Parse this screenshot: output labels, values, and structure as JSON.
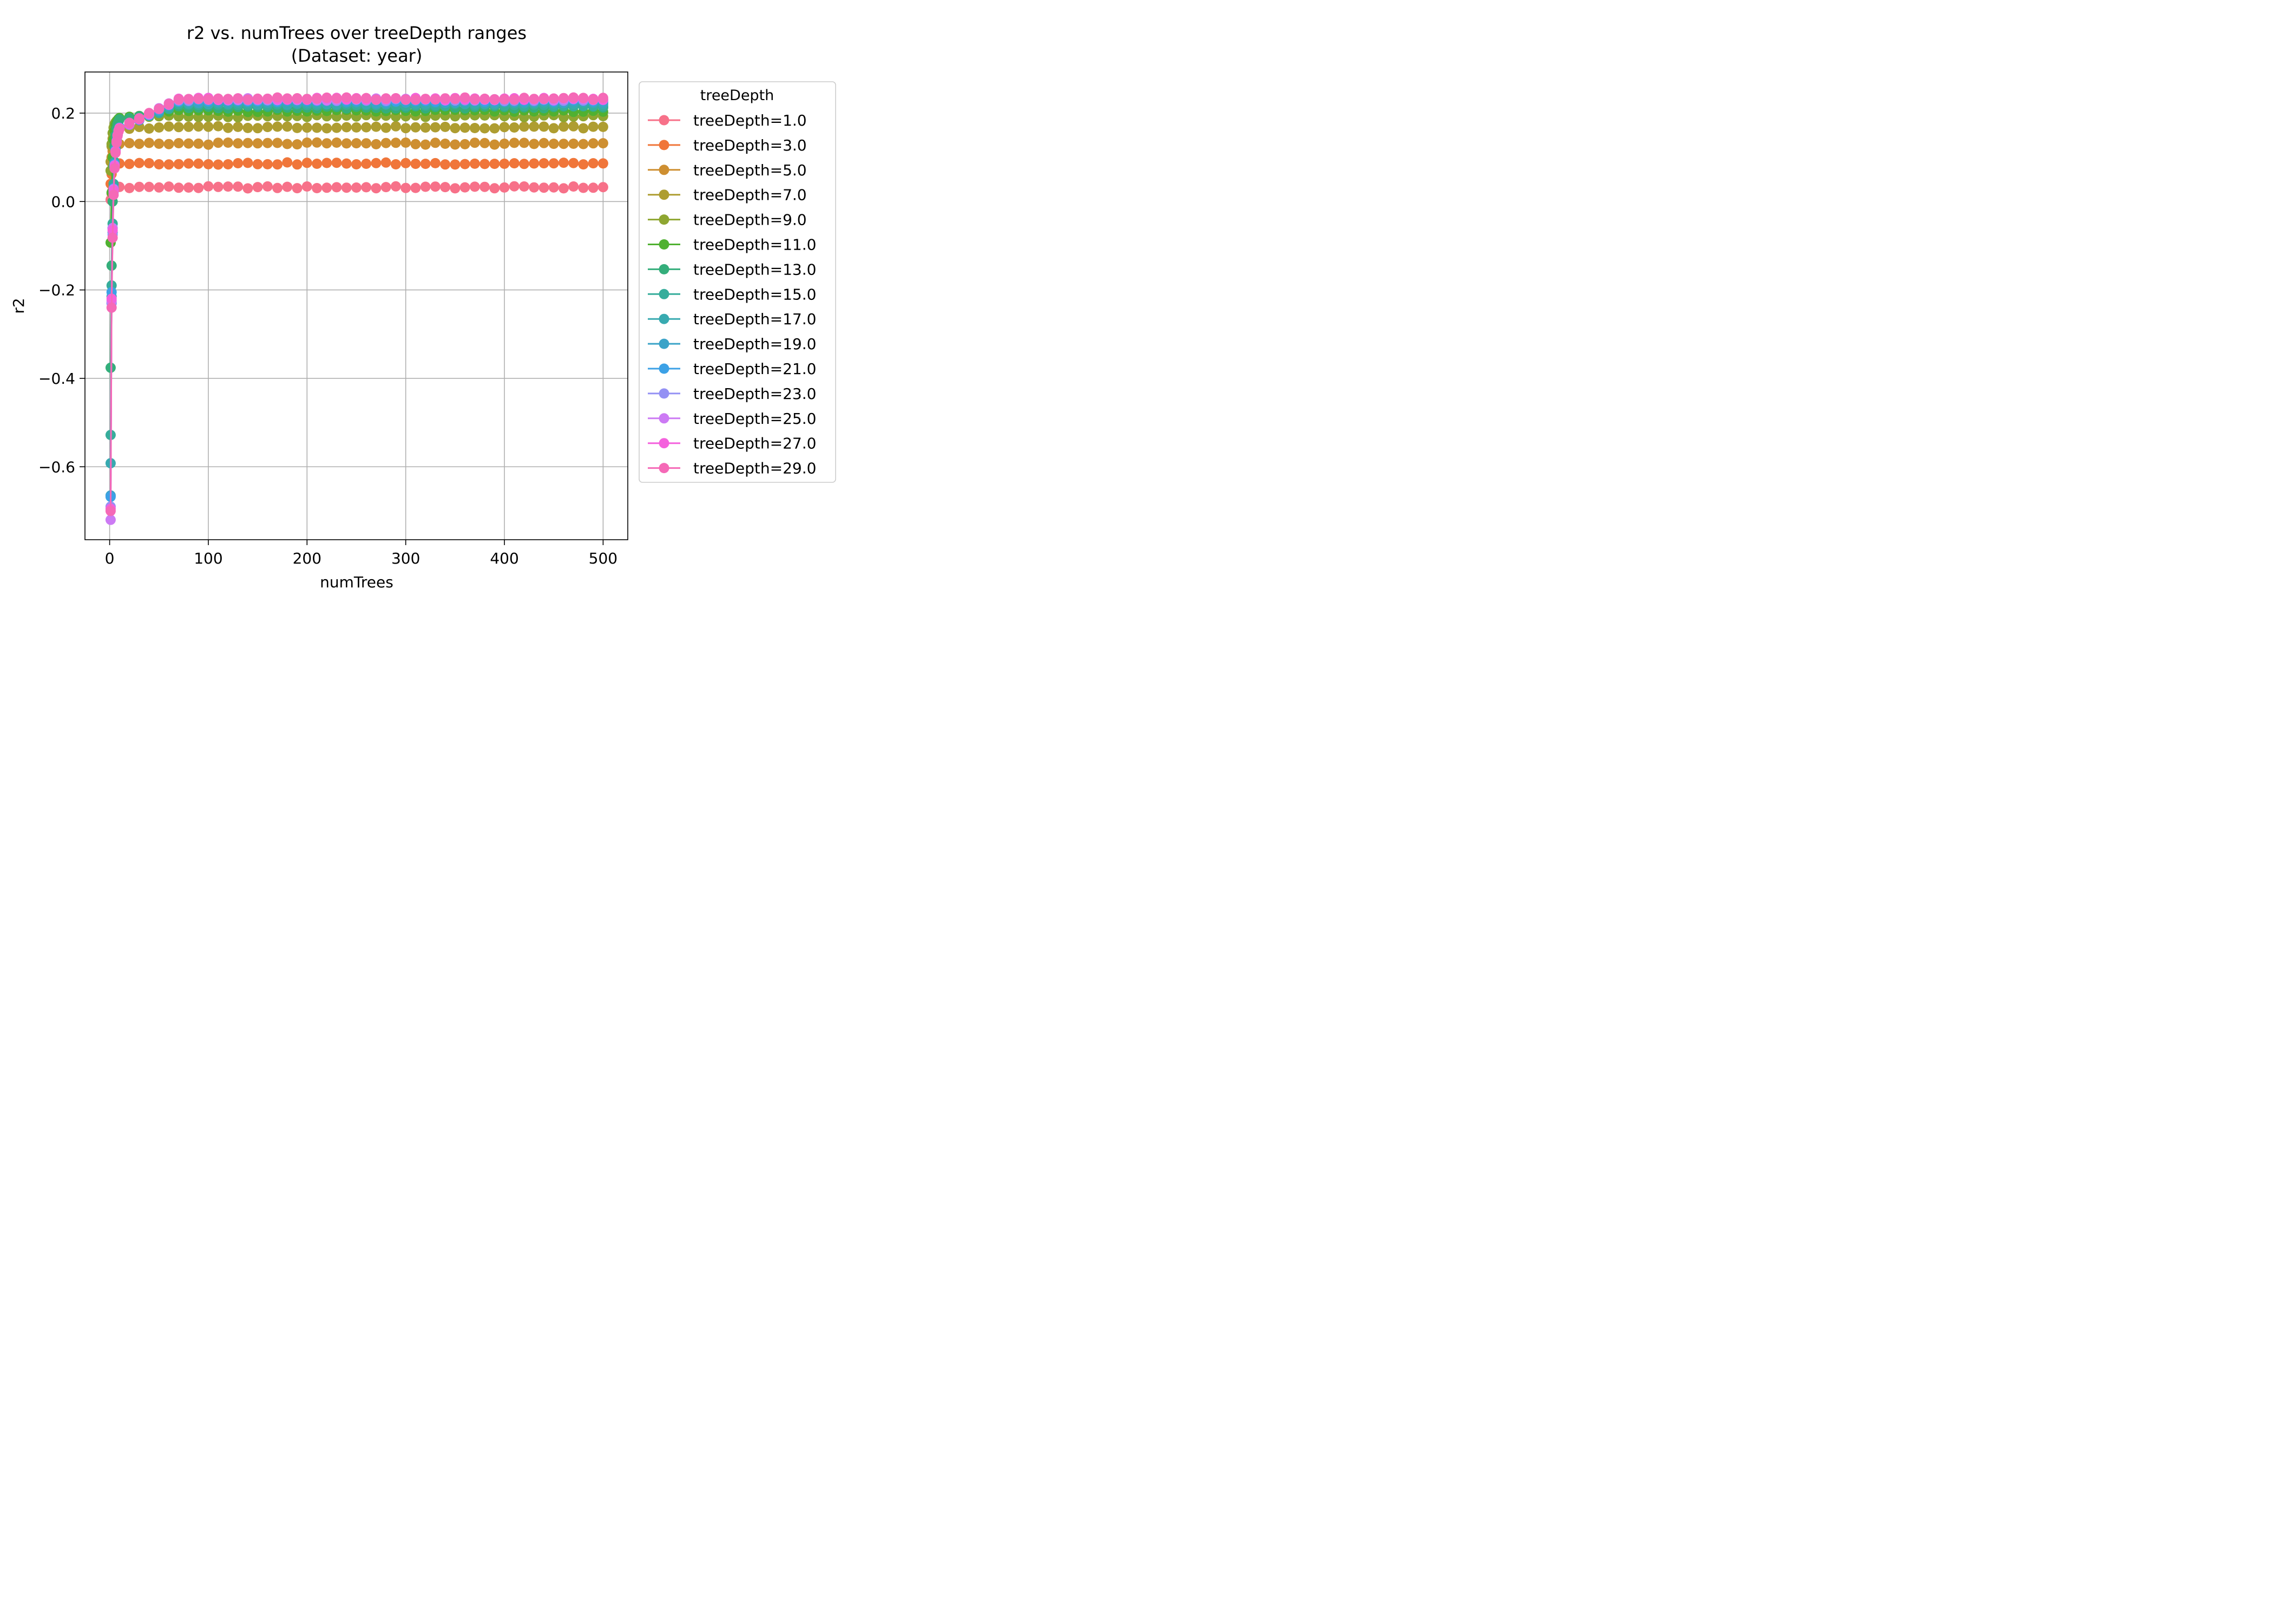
{
  "chart_data": {
    "type": "line",
    "title": "r2 vs. numTrees over treeDepth ranges",
    "subtitle": "(Dataset: year)",
    "xlabel": "numTrees",
    "ylabel": "r2",
    "xlim": [
      -25,
      525
    ],
    "ylim": [
      -0.765,
      0.293
    ],
    "xticks": [
      0,
      100,
      200,
      300,
      400,
      500
    ],
    "xtick_labels": [
      "0",
      "100",
      "200",
      "300",
      "400",
      "500"
    ],
    "yticks": [
      -0.6,
      -0.4,
      -0.2,
      0.0,
      0.2
    ],
    "ytick_labels": [
      "−0.6",
      "−0.4",
      "−0.2",
      "0.0",
      "0.2"
    ],
    "grid": true,
    "legend": {
      "title": "treeDepth",
      "placement": "outside-right"
    },
    "x": [
      1,
      2,
      3,
      4,
      5,
      6,
      7,
      8,
      9,
      10,
      20,
      30,
      40,
      50,
      60,
      70,
      80,
      90,
      100,
      110,
      120,
      130,
      140,
      150,
      160,
      170,
      180,
      190,
      200,
      210,
      220,
      230,
      240,
      250,
      260,
      270,
      280,
      290,
      300,
      310,
      320,
      330,
      340,
      350,
      360,
      370,
      380,
      390,
      400,
      410,
      420,
      430,
      440,
      450,
      460,
      470,
      480,
      490,
      500
    ],
    "series": [
      {
        "name": "treeDepth=1.0",
        "color": "#f77189",
        "depth": 1,
        "start": [
          0.004,
          0.018,
          0.026,
          0.03,
          0.032,
          0.032,
          0.033,
          0.033,
          0.033,
          0.033
        ],
        "plateau": 0.032
      },
      {
        "name": "treeDepth=3.0",
        "color": "#f0763a",
        "depth": 3,
        "start": [
          0.04,
          0.062,
          0.073,
          0.079,
          0.082,
          0.084,
          0.085,
          0.086,
          0.086,
          0.086
        ],
        "plateau": 0.086
      },
      {
        "name": "treeDepth=5.0",
        "color": "#ce8f31",
        "depth": 5,
        "start": [
          0.07,
          0.1,
          0.114,
          0.121,
          0.125,
          0.127,
          0.128,
          0.129,
          0.129,
          0.13
        ],
        "plateau": 0.131
      },
      {
        "name": "treeDepth=7.0",
        "color": "#ae9d31",
        "depth": 7,
        "start": [
          0.09,
          0.125,
          0.142,
          0.152,
          0.157,
          0.161,
          0.163,
          0.164,
          0.165,
          0.166
        ],
        "plateau": 0.168
      },
      {
        "name": "treeDepth=9.0",
        "color": "#8ea631",
        "depth": 9,
        "start": [
          0.07,
          0.13,
          0.155,
          0.167,
          0.175,
          0.179,
          0.182,
          0.184,
          0.186,
          0.187
        ],
        "plateau": 0.193
      },
      {
        "name": "treeDepth=11.0",
        "color": "#50b131",
        "depth": 11,
        "start": [
          -0.093,
          0.02,
          0.1,
          0.14,
          0.16,
          0.172,
          0.179,
          0.184,
          0.187,
          0.189
        ],
        "plateau": 0.205
      },
      {
        "name": "treeDepth=13.0",
        "color": "#34ae7b",
        "depth": 13,
        "start": [
          -0.376,
          -0.145,
          0.0,
          0.08,
          0.125,
          0.15,
          0.165,
          0.175,
          0.181,
          0.186
        ],
        "plateau": 0.213
      },
      {
        "name": "treeDepth=15.0",
        "color": "#36ad9b",
        "depth": 15,
        "start": [
          -0.528,
          -0.19,
          -0.05,
          0.04,
          0.09,
          0.12,
          0.14,
          0.153,
          0.162,
          0.168
        ],
        "plateau": 0.218
      },
      {
        "name": "treeDepth=17.0",
        "color": "#38aab0",
        "depth": 17,
        "start": [
          -0.592,
          -0.215,
          -0.06,
          0.03,
          0.085,
          0.115,
          0.137,
          0.151,
          0.161,
          0.167
        ],
        "plateau": 0.222
      },
      {
        "name": "treeDepth=19.0",
        "color": "#3ba3c8",
        "depth": 19,
        "start": [
          -0.665,
          -0.23,
          -0.07,
          0.025,
          0.08,
          0.113,
          0.135,
          0.15,
          0.16,
          0.166
        ],
        "plateau": 0.225
      },
      {
        "name": "treeDepth=21.0",
        "color": "#3ca1e6",
        "depth": 21,
        "start": [
          -0.668,
          -0.205,
          -0.06,
          0.03,
          0.085,
          0.116,
          0.137,
          0.151,
          0.161,
          0.167
        ],
        "plateau": 0.228
      },
      {
        "name": "treeDepth=23.0",
        "color": "#9491f4",
        "depth": 23,
        "start": [
          -0.69,
          -0.23,
          -0.075,
          0.02,
          0.078,
          0.112,
          0.134,
          0.149,
          0.159,
          0.165
        ],
        "plateau": 0.23
      },
      {
        "name": "treeDepth=25.0",
        "color": "#cc7af4",
        "depth": 25,
        "start": [
          -0.72,
          -0.225,
          -0.06,
          0.028,
          0.082,
          0.114,
          0.136,
          0.15,
          0.16,
          0.166
        ],
        "plateau": 0.231
      },
      {
        "name": "treeDepth=27.0",
        "color": "#f461dd",
        "depth": 27,
        "start": [
          -0.695,
          -0.22,
          -0.065,
          0.025,
          0.08,
          0.113,
          0.135,
          0.15,
          0.16,
          0.166
        ],
        "plateau": 0.232
      },
      {
        "name": "treeDepth=29.0",
        "color": "#f569b7",
        "depth": 29,
        "start": [
          -0.7,
          -0.24,
          -0.082,
          0.015,
          0.075,
          0.11,
          0.133,
          0.148,
          0.158,
          0.164
        ],
        "plateau": 0.233
      }
    ]
  }
}
